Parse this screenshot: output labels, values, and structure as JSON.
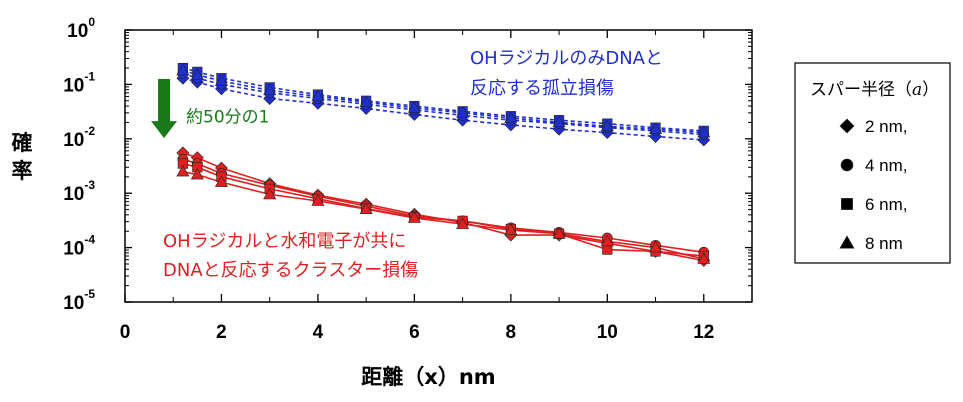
{
  "chart_data": {
    "type": "scatter",
    "xlabel": "距離（x）nm",
    "ylabel": "確率",
    "xlim": [
      0,
      13
    ],
    "ylim_exp": [
      -5,
      0
    ],
    "y_scale": "log",
    "x_ticks": [
      "0",
      "2",
      "4",
      "6",
      "8",
      "10",
      "12"
    ],
    "y_ticks": [
      {
        "base": "10",
        "exp": "0"
      },
      {
        "base": "10",
        "exp": "-1"
      },
      {
        "base": "10",
        "exp": "-2"
      },
      {
        "base": "10",
        "exp": "-3"
      },
      {
        "base": "10",
        "exp": "-4"
      },
      {
        "base": "10",
        "exp": "-5"
      }
    ],
    "x": [
      1.2,
      1.5,
      2,
      3,
      4,
      5,
      6,
      7,
      8,
      9,
      10,
      11,
      12
    ],
    "groups": [
      {
        "color": "#1f2fd0",
        "line_style": "dashed",
        "label_lines": [
          "OHラジカルのみDNAと",
          "反応する孤立損傷"
        ],
        "series": [
          {
            "marker": "diamond",
            "values": [
              0.13,
              0.11,
              0.083,
              0.055,
              0.045,
              0.036,
              0.028,
              0.022,
              0.018,
              0.015,
              0.013,
              0.011,
              0.0095
            ]
          },
          {
            "marker": "circle",
            "values": [
              0.16,
              0.13,
              0.1,
              0.07,
              0.055,
              0.043,
              0.034,
              0.027,
              0.022,
              0.019,
              0.016,
              0.014,
              0.012
            ]
          },
          {
            "marker": "square",
            "values": [
              0.2,
              0.17,
              0.13,
              0.088,
              0.065,
              0.05,
              0.04,
              0.032,
              0.026,
              0.022,
              0.019,
              0.016,
              0.014
            ]
          },
          {
            "marker": "triangle",
            "values": [
              0.18,
              0.15,
              0.115,
              0.078,
              0.06,
              0.047,
              0.037,
              0.03,
              0.024,
              0.02,
              0.017,
              0.015,
              0.013
            ]
          }
        ]
      },
      {
        "color": "#e02020",
        "line_style": "solid",
        "label_lines": [
          "OHラジカルと水和電子が共に",
          "DNAと反応するクラスター損傷"
        ],
        "series": [
          {
            "marker": "diamond",
            "values": [
              0.0055,
              0.0045,
              0.0029,
              0.0015,
              0.00092,
              0.00063,
              0.00041,
              0.00029,
              0.00017,
              0.00017,
              0.00012,
              8.5e-05,
              5.8e-05
            ]
          },
          {
            "marker": "circle",
            "values": [
              0.0042,
              0.0035,
              0.0023,
              0.0014,
              0.00088,
              0.00058,
              0.00038,
              0.00031,
              0.00023,
              0.00019,
              0.00015,
              0.00011,
              8.2e-05
            ]
          },
          {
            "marker": "square",
            "values": [
              0.0035,
              0.003,
              0.002,
              0.0012,
              0.00079,
              0.00052,
              0.00036,
              0.00031,
              0.00022,
              0.00018,
              9.2e-05,
              8.5e-05,
              7e-05
            ]
          },
          {
            "marker": "triangle",
            "values": [
              0.0025,
              0.0022,
              0.0016,
              0.00095,
              0.00072,
              0.00051,
              0.00035,
              0.00027,
              0.00021,
              0.00018,
              0.00013,
              0.0001,
              6.2e-05
            ]
          }
        ]
      }
    ],
    "annotation": {
      "text": "約50分の1",
      "color": "#1a7a1a",
      "arrow_from_exp": -0.9,
      "arrow_to_exp": -1.95,
      "x": 1.1
    },
    "legend": {
      "placement": "right",
      "title": "スパー半径",
      "title_var": "a",
      "entries": [
        {
          "marker": "diamond",
          "label": "2 nm,"
        },
        {
          "marker": "circle",
          "label": "4 nm,"
        },
        {
          "marker": "square",
          "label": "6 nm,"
        },
        {
          "marker": "triangle",
          "label": "8 nm"
        }
      ]
    }
  }
}
